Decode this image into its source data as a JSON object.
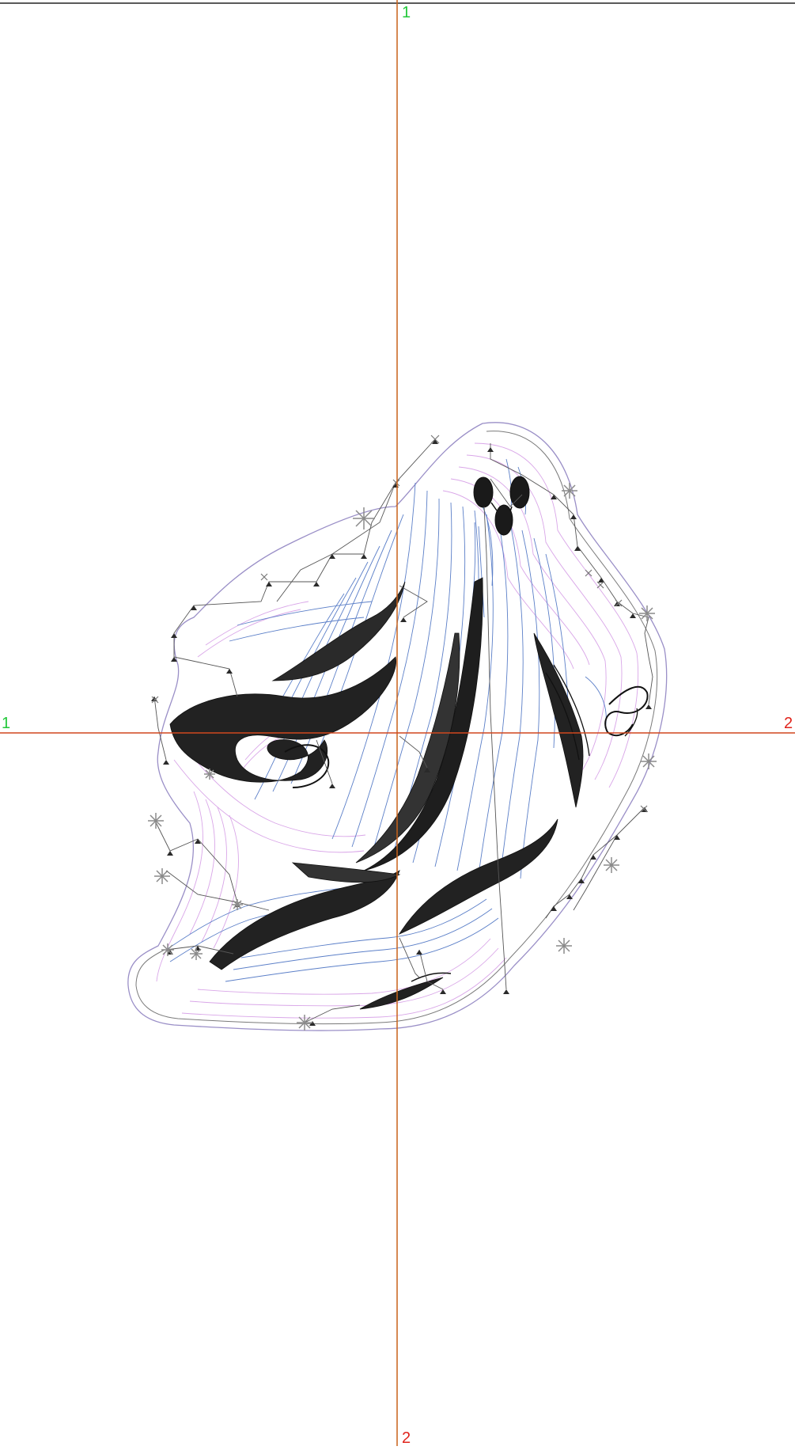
{
  "guides": {
    "vertical": {
      "start_label": "1",
      "end_label": "2"
    },
    "horizontal": {
      "start_label": "1",
      "end_label": "2"
    }
  },
  "colors": {
    "background": "#ffffff",
    "guide_line": "#c8621a",
    "guide_line_h": "#d0471e",
    "start_label": "#22c83a",
    "end_label": "#e0241c",
    "stitch_dark": "#111111",
    "stitch_blue": "#5b7fc8",
    "stitch_pink": "#d9a6e8",
    "stitch_lilac": "#9a8fc7",
    "outline_gray": "#7a7a7a",
    "marker_gray": "#8a8a8a"
  },
  "design": {
    "name_icon": "ghost-embroidery-design"
  }
}
